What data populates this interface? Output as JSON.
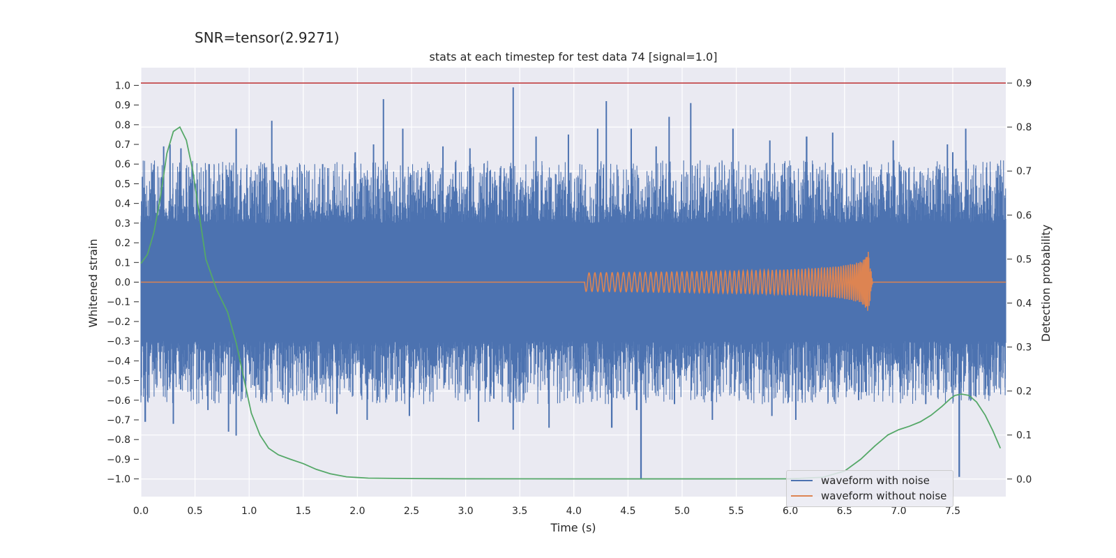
{
  "header": {
    "snr_label": "SNR=tensor(2.9271)"
  },
  "chart_data": {
    "type": "line",
    "title": "stats at each timestep for test data 74 [signal=1.0]",
    "xlabel": "Time (s)",
    "ylabel_left": "Whitened strain",
    "ylabel_right": "Detection probability",
    "xlim": [
      0.0,
      7.99
    ],
    "ylim_left": [
      -1.09,
      1.09
    ],
    "ylim_right": [
      -0.04,
      0.935
    ],
    "x_ticks": [
      "0.0",
      "0.5",
      "1.0",
      "1.5",
      "2.0",
      "2.5",
      "3.0",
      "3.5",
      "4.0",
      "4.5",
      "5.0",
      "5.5",
      "6.0",
      "6.5",
      "7.0",
      "7.5"
    ],
    "y_ticks_left": [
      "1.0",
      "0.9",
      "0.8",
      "0.7",
      "0.6",
      "0.5",
      "0.4",
      "0.3",
      "0.2",
      "0.1",
      "0.0",
      "−0.1",
      "−0.2",
      "−0.3",
      "−0.4",
      "−0.5",
      "−0.6",
      "−0.7",
      "−0.8",
      "−0.9",
      "−1.0"
    ],
    "y_ticks_right": [
      "0.9",
      "0.8",
      "0.7",
      "0.6",
      "0.5",
      "0.4",
      "0.3",
      "0.2",
      "0.1",
      "0.0"
    ],
    "threshold": {
      "value": 0.9,
      "axis": "right",
      "color": "#c03d3e"
    },
    "grid": true,
    "legend_position": "lower-right",
    "colors": {
      "background": "#eaeaf2",
      "noisy": "#4c72b0",
      "clean": "#dd8452",
      "probability": "#55a868"
    },
    "series": [
      {
        "name": "waveform with noise",
        "axis": "left",
        "kind": "noisy_strain",
        "typical_range": [
          -0.3,
          0.3
        ],
        "peaks": [
          {
            "x": 0.21,
            "y": 0.69
          },
          {
            "x": 0.27,
            "y": 0.7
          },
          {
            "x": 0.37,
            "y": 0.68
          },
          {
            "x": 0.63,
            "y": 0.6
          },
          {
            "x": 0.88,
            "y": 0.78
          },
          {
            "x": 1.21,
            "y": 0.82
          },
          {
            "x": 1.68,
            "y": 0.6
          },
          {
            "x": 1.98,
            "y": 0.66
          },
          {
            "x": 2.15,
            "y": 0.7
          },
          {
            "x": 2.24,
            "y": 0.93
          },
          {
            "x": 2.42,
            "y": 0.78
          },
          {
            "x": 2.79,
            "y": 0.69
          },
          {
            "x": 3.04,
            "y": 0.68
          },
          {
            "x": 3.44,
            "y": 0.99
          },
          {
            "x": 3.65,
            "y": 0.74
          },
          {
            "x": 3.95,
            "y": 0.75
          },
          {
            "x": 4.22,
            "y": 0.78
          },
          {
            "x": 4.3,
            "y": 0.92
          },
          {
            "x": 4.53,
            "y": 0.78
          },
          {
            "x": 4.76,
            "y": 0.69
          },
          {
            "x": 4.88,
            "y": 0.84
          },
          {
            "x": 5.08,
            "y": 0.91
          },
          {
            "x": 5.47,
            "y": 0.78
          },
          {
            "x": 5.81,
            "y": 0.72
          },
          {
            "x": 6.15,
            "y": 0.74
          },
          {
            "x": 6.39,
            "y": 0.76
          },
          {
            "x": 6.95,
            "y": 0.72
          },
          {
            "x": 7.45,
            "y": 0.7
          },
          {
            "x": 7.5,
            "y": 0.66
          },
          {
            "x": 7.62,
            "y": 0.78
          }
        ],
        "troughs": [
          {
            "x": 0.04,
            "y": -0.71
          },
          {
            "x": 0.3,
            "y": -0.72
          },
          {
            "x": 0.62,
            "y": -0.65
          },
          {
            "x": 0.81,
            "y": -0.76
          },
          {
            "x": 0.88,
            "y": -0.78
          },
          {
            "x": 1.36,
            "y": -0.62
          },
          {
            "x": 1.81,
            "y": -0.67
          },
          {
            "x": 2.09,
            "y": -0.7
          },
          {
            "x": 2.48,
            "y": -0.68
          },
          {
            "x": 3.12,
            "y": -0.71
          },
          {
            "x": 3.44,
            "y": -0.75
          },
          {
            "x": 3.77,
            "y": -0.74
          },
          {
            "x": 4.35,
            "y": -0.74
          },
          {
            "x": 4.58,
            "y": -0.65
          },
          {
            "x": 4.62,
            "y": -1.0
          },
          {
            "x": 4.93,
            "y": -0.62
          },
          {
            "x": 5.28,
            "y": -0.7
          },
          {
            "x": 5.83,
            "y": -0.68
          },
          {
            "x": 6.05,
            "y": -0.7
          },
          {
            "x": 6.63,
            "y": -0.6
          },
          {
            "x": 7.25,
            "y": -0.62
          },
          {
            "x": 7.56,
            "y": -0.99
          },
          {
            "x": 7.71,
            "y": -0.58
          }
        ]
      },
      {
        "name": "waveform without noise",
        "axis": "left",
        "kind": "chirp",
        "chirp_start": 4.1,
        "merger_time": 6.72,
        "peak_amplitude": 0.16,
        "peak_trough": -0.16
      },
      {
        "name": "detection probability",
        "axis": "right",
        "x": [
          0.0,
          0.06,
          0.12,
          0.18,
          0.24,
          0.3,
          0.36,
          0.42,
          0.48,
          0.54,
          0.6,
          0.7,
          0.8,
          0.88,
          0.95,
          1.02,
          1.1,
          1.18,
          1.27,
          1.38,
          1.5,
          1.62,
          1.75,
          1.9,
          2.1,
          2.5,
          3.0,
          4.0,
          5.0,
          6.0,
          6.3,
          6.5,
          6.65,
          6.78,
          6.9,
          7.0,
          7.1,
          7.2,
          7.3,
          7.4,
          7.48,
          7.52,
          7.58,
          7.65,
          7.72,
          7.8,
          7.87,
          7.94
        ],
        "y": [
          0.49,
          0.51,
          0.56,
          0.64,
          0.74,
          0.79,
          0.8,
          0.77,
          0.7,
          0.6,
          0.5,
          0.43,
          0.38,
          0.31,
          0.23,
          0.15,
          0.1,
          0.07,
          0.055,
          0.045,
          0.035,
          0.022,
          0.012,
          0.005,
          0.002,
          0.001,
          0.0005,
          0.0003,
          0.0003,
          0.0005,
          0.004,
          0.018,
          0.045,
          0.075,
          0.1,
          0.112,
          0.12,
          0.13,
          0.145,
          0.165,
          0.183,
          0.19,
          0.193,
          0.19,
          0.175,
          0.145,
          0.11,
          0.07
        ]
      }
    ]
  }
}
